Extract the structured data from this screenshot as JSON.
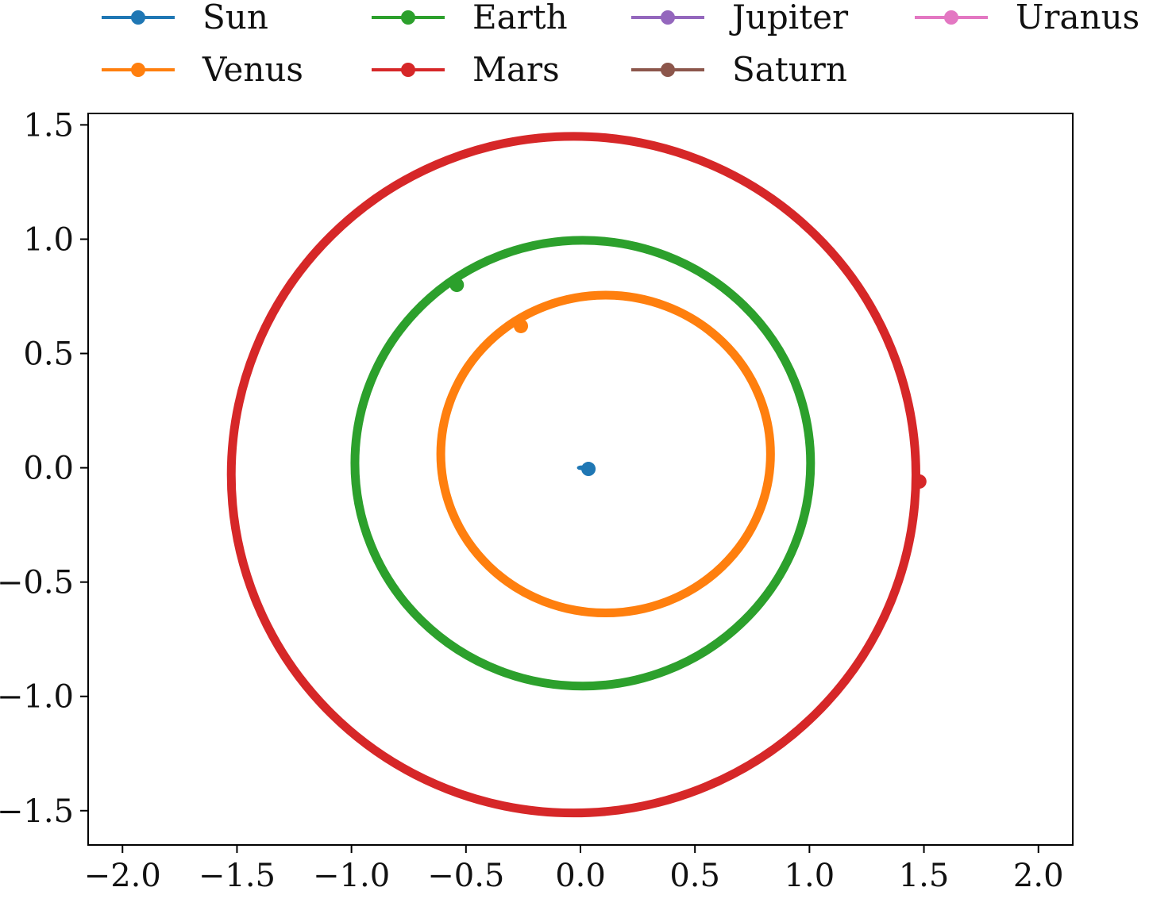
{
  "chart_data": {
    "type": "line",
    "title": "",
    "xlabel": "",
    "ylabel": "",
    "xlim": [
      -2.15,
      2.15
    ],
    "ylim": [
      -1.65,
      1.55
    ],
    "xticks": [
      -2.0,
      -1.5,
      -1.0,
      -0.5,
      0.0,
      0.5,
      1.0,
      1.5,
      2.0
    ],
    "yticks": [
      -1.5,
      -1.0,
      -0.5,
      0.0,
      0.5,
      1.0,
      1.5
    ],
    "xtick_labels": [
      "−2.0",
      "−1.5",
      "−1.0",
      "−0.5",
      "0.0",
      "0.5",
      "1.0",
      "1.5",
      "2.0"
    ],
    "ytick_labels": [
      "−1.5",
      "−1.0",
      "−0.5",
      "0.0",
      "0.5",
      "1.0",
      "1.5"
    ],
    "grid": false,
    "legend_placement": "top, outside plot, 4 columns",
    "series": [
      {
        "name": "Sun",
        "color": "#1f77b4",
        "orbit": {
          "cx": 0.01,
          "cy": 0.0,
          "rx": 0.02,
          "ry": 0.005
        },
        "marker": [
          0.035,
          -0.005
        ]
      },
      {
        "name": "Venus",
        "color": "#ff7f0e",
        "orbit": {
          "cx": 0.11,
          "cy": 0.06,
          "rx": 0.72,
          "ry": 0.695
        },
        "marker": [
          -0.26,
          0.62
        ]
      },
      {
        "name": "Earth",
        "color": "#2ca02c",
        "orbit": {
          "cx": 0.01,
          "cy": 0.02,
          "rx": 0.995,
          "ry": 0.975
        },
        "marker": [
          -0.54,
          0.8
        ]
      },
      {
        "name": "Mars",
        "color": "#d62728",
        "orbit": {
          "cx": -0.03,
          "cy": -0.03,
          "rx": 1.495,
          "ry": 1.48
        },
        "marker": [
          1.48,
          -0.06
        ]
      },
      {
        "name": "Jupiter",
        "color": "#9467bd"
      },
      {
        "name": "Saturn",
        "color": "#8c564b"
      },
      {
        "name": "Uranus",
        "color": "#e377c2"
      }
    ]
  }
}
